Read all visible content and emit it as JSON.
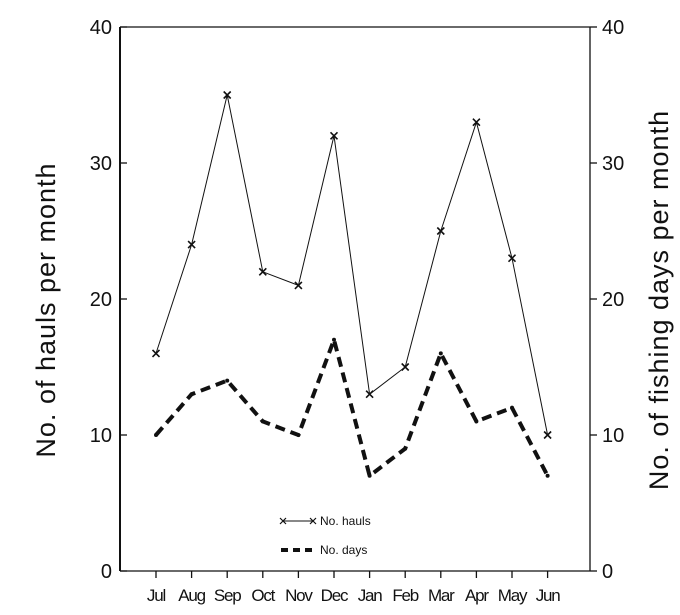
{
  "chart_data": {
    "type": "line",
    "categories": [
      "Jul",
      "Aug",
      "Sep",
      "Oct",
      "Nov",
      "Dec",
      "Jan",
      "Feb",
      "Mar",
      "Apr",
      "May",
      "Jun"
    ],
    "series": [
      {
        "name": "No. hauls",
        "axis": "left",
        "style": "solid-with-x-markers",
        "values": [
          16,
          24,
          35,
          22,
          21,
          32,
          13,
          15,
          25,
          33,
          23,
          10
        ]
      },
      {
        "name": "No. days",
        "axis": "right",
        "style": "thick-dashed",
        "values": [
          10,
          13,
          14,
          11,
          10,
          17,
          7,
          9,
          16,
          11,
          12,
          7
        ]
      }
    ],
    "ylabel_left": "No. of hauls per month",
    "ylabel_right": "No. of fishing days per month",
    "ylim_left": [
      0,
      40
    ],
    "ylim_right": [
      0,
      40
    ],
    "yticks_left": [
      0,
      10,
      20,
      30,
      40
    ],
    "yticks_right": [
      0,
      10,
      20,
      30,
      40
    ],
    "legend_position": "bottom-center",
    "grid": false,
    "colors": {
      "line": "#111111",
      "background": "#ffffff"
    }
  }
}
